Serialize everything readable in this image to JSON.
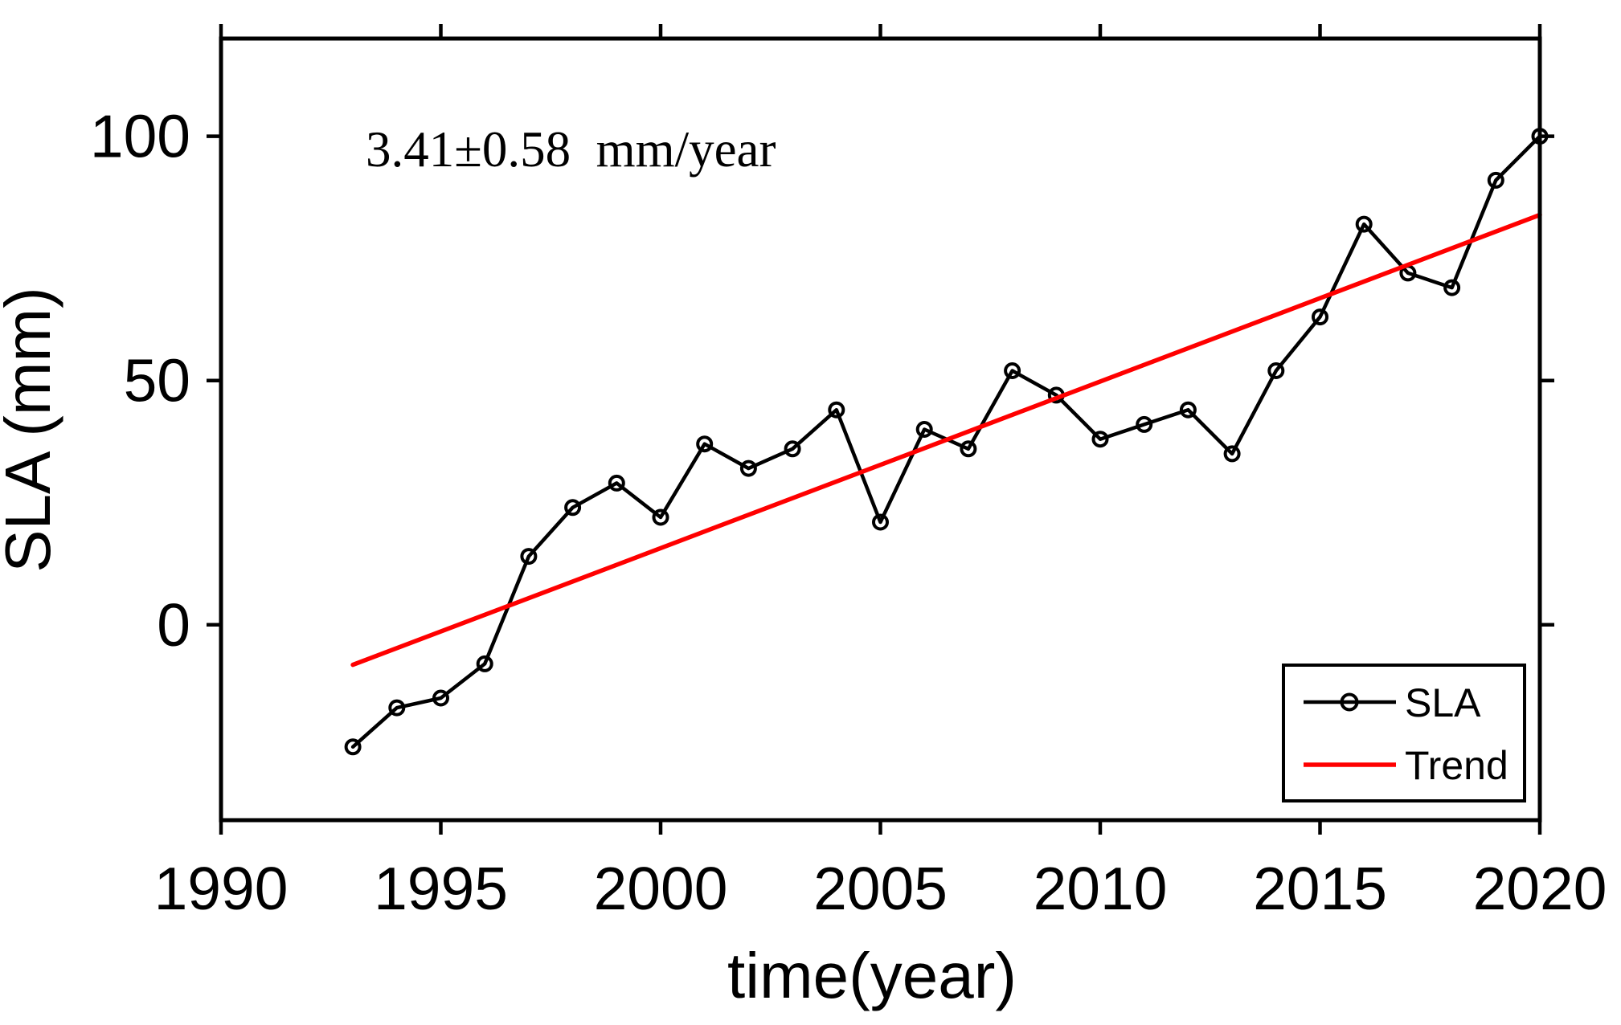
{
  "figure": {
    "background": "#ffffff",
    "annotation": "3.41±0.58  mm/year"
  },
  "chart_data": {
    "type": "line",
    "title": "",
    "annotation": "3.41±0.58  mm/year",
    "xlabel": "time(year)",
    "ylabel": "SLA (mm)",
    "xlim": [
      1990,
      2020
    ],
    "ylim": [
      -40,
      120
    ],
    "xticks": [
      1990,
      1995,
      2000,
      2005,
      2010,
      2015,
      2020
    ],
    "yticks": [
      0,
      50,
      100
    ],
    "grid": false,
    "legend_position": "lower right",
    "series": [
      {
        "name": "SLA",
        "color": "#000000",
        "style": "line+circle-marker",
        "x": [
          1993,
          1994,
          1995,
          1996,
          1997,
          1998,
          1999,
          2000,
          2001,
          2002,
          2003,
          2004,
          2005,
          2006,
          2007,
          2008,
          2009,
          2010,
          2011,
          2012,
          2013,
          2014,
          2015,
          2016,
          2017,
          2018,
          2019,
          2020
        ],
        "values": [
          -25,
          -17,
          -15,
          -8,
          14,
          24,
          29,
          22,
          37,
          32,
          36,
          44,
          21,
          40,
          36,
          52,
          47,
          38,
          41,
          44,
          35,
          52,
          63,
          82,
          72,
          69,
          91,
          100
        ]
      },
      {
        "name": "Trend",
        "color": "#ff0000",
        "style": "line",
        "x": [
          1993,
          2020
        ],
        "values": [
          -8.2,
          83.9
        ],
        "slope_mm_per_year": 3.41,
        "uncertainty_mm_per_year": 0.58
      }
    ]
  }
}
